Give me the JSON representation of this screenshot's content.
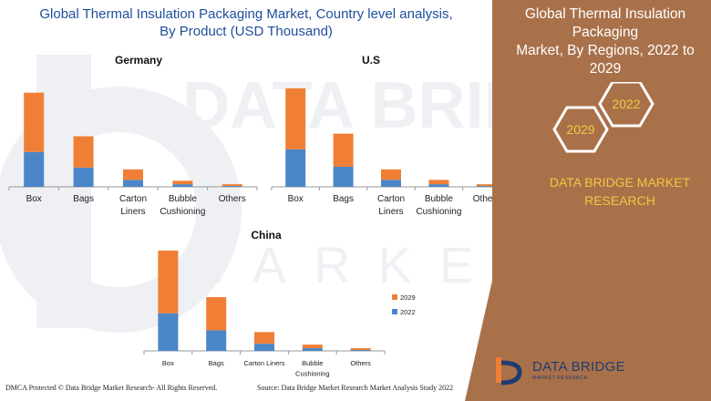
{
  "main_title_line1": "Global Thermal Insulation Packaging Market, Country level analysis,",
  "main_title_line2": "By Product (USD Thousand)",
  "side_title_line1": "Global Thermal Insulation Packaging",
  "side_title_line2": "Market, By Regions, 2022 to 2029",
  "hex_labels": [
    "2022",
    "2029"
  ],
  "brand_line1": "DATA BRIDGE MARKET",
  "brand_line2": "RESEARCH",
  "logo_name": "DATA BRIDGE",
  "logo_tagline": "MARKET RESEARCH",
  "footer_left": "DMCA Protected © Data Bridge Market Research- All Rights Reserved.",
  "footer_right": "Source: Data Bridge Market Research Market Analysis Study 2022",
  "colors": {
    "series_2022": "#4a86c8",
    "series_2029": "#f07f35",
    "title_blue": "#1f4e9c",
    "side_panel": "#a9714a",
    "brand_yellow": "#f4c542"
  },
  "chart_data": [
    {
      "type": "bar",
      "stacked": true,
      "title": "Germany",
      "categories": [
        [
          "Box"
        ],
        [
          "Bags"
        ],
        [
          "Carton",
          "Liners"
        ],
        [
          "Bubble",
          "Cushioning"
        ],
        [
          "Others"
        ]
      ],
      "series": [
        {
          "name": "2022",
          "values": [
            40,
            22,
            8,
            3,
            1
          ]
        },
        {
          "name": "2029",
          "values": [
            68,
            36,
            12,
            4,
            2
          ]
        }
      ],
      "ylim": [
        0,
        115
      ]
    },
    {
      "type": "bar",
      "stacked": true,
      "title": "U.S",
      "categories": [
        [
          "Box"
        ],
        [
          "Bags"
        ],
        [
          "Carton",
          "Liners"
        ],
        [
          "Bubble",
          "Cushioning"
        ],
        [
          "Others"
        ]
      ],
      "series": [
        {
          "name": "2022",
          "values": [
            43,
            23,
            8,
            3,
            1
          ]
        },
        {
          "name": "2029",
          "values": [
            70,
            38,
            12,
            5,
            2
          ]
        }
      ],
      "ylim": [
        0,
        115
      ]
    },
    {
      "type": "bar",
      "stacked": true,
      "title": "China",
      "categories": [
        [
          "Box"
        ],
        [
          "Bags"
        ],
        [
          "Carton Liners"
        ],
        [
          "Bubble",
          "Cushioning"
        ],
        [
          "Others"
        ]
      ],
      "series": [
        {
          "name": "2022",
          "values": [
            42,
            23,
            8,
            3,
            1
          ]
        },
        {
          "name": "2029",
          "values": [
            70,
            37,
            13,
            4,
            2
          ]
        }
      ],
      "legend": "right",
      "ylim": [
        0,
        115
      ]
    }
  ]
}
